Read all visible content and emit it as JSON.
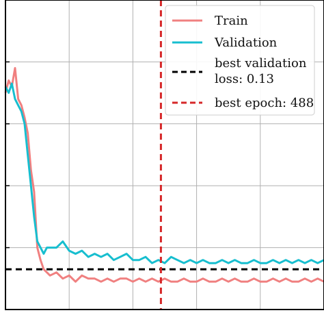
{
  "chart_data": {
    "type": "line",
    "title": "",
    "xlabel": "",
    "ylabel": "",
    "grid": true,
    "legend": {
      "placement": "top-right"
    },
    "xlim": [
      0,
      1000
    ],
    "ylim": [
      0,
      1.0
    ],
    "series": [
      {
        "name": "Train",
        "color": "#f08080",
        "x": [
          0,
          10,
          20,
          30,
          40,
          50,
          60,
          70,
          80,
          90,
          100,
          110,
          120,
          130,
          140,
          160,
          180,
          200,
          220,
          240,
          260,
          280,
          300,
          320,
          340,
          360,
          380,
          400,
          420,
          440,
          460,
          480,
          500,
          520,
          540,
          560,
          580,
          600,
          620,
          640,
          660,
          680,
          700,
          720,
          740,
          760,
          780,
          800,
          820,
          840,
          860,
          880,
          900,
          920,
          940,
          960,
          980,
          1000
        ],
        "y": [
          0.7,
          0.74,
          0.72,
          0.78,
          0.68,
          0.66,
          0.62,
          0.57,
          0.45,
          0.38,
          0.2,
          0.16,
          0.13,
          0.12,
          0.11,
          0.12,
          0.1,
          0.11,
          0.09,
          0.11,
          0.1,
          0.1,
          0.09,
          0.1,
          0.09,
          0.1,
          0.1,
          0.09,
          0.1,
          0.09,
          0.1,
          0.09,
          0.1,
          0.09,
          0.09,
          0.1,
          0.09,
          0.09,
          0.1,
          0.09,
          0.09,
          0.1,
          0.09,
          0.1,
          0.09,
          0.09,
          0.1,
          0.09,
          0.09,
          0.1,
          0.09,
          0.1,
          0.09,
          0.09,
          0.1,
          0.09,
          0.1,
          0.09
        ]
      },
      {
        "name": "Validation",
        "color": "#17becf",
        "x": [
          0,
          10,
          20,
          30,
          40,
          50,
          60,
          70,
          80,
          90,
          100,
          110,
          120,
          130,
          140,
          160,
          180,
          200,
          220,
          240,
          260,
          280,
          300,
          320,
          340,
          360,
          380,
          400,
          420,
          440,
          460,
          480,
          500,
          520,
          540,
          560,
          580,
          600,
          620,
          640,
          660,
          680,
          700,
          720,
          740,
          760,
          780,
          800,
          820,
          840,
          860,
          880,
          900,
          920,
          940,
          960,
          980,
          1000
        ],
        "y": [
          0.72,
          0.7,
          0.73,
          0.68,
          0.66,
          0.64,
          0.6,
          0.5,
          0.4,
          0.3,
          0.22,
          0.2,
          0.18,
          0.2,
          0.2,
          0.2,
          0.22,
          0.19,
          0.18,
          0.19,
          0.17,
          0.18,
          0.17,
          0.18,
          0.16,
          0.17,
          0.18,
          0.16,
          0.16,
          0.17,
          0.15,
          0.16,
          0.15,
          0.17,
          0.16,
          0.15,
          0.16,
          0.15,
          0.16,
          0.15,
          0.15,
          0.16,
          0.15,
          0.16,
          0.15,
          0.15,
          0.16,
          0.15,
          0.15,
          0.16,
          0.15,
          0.16,
          0.15,
          0.16,
          0.15,
          0.16,
          0.15,
          0.16
        ]
      }
    ],
    "reference_lines": [
      {
        "kind": "horizontal",
        "value": 0.13,
        "color": "#000000",
        "label": "best validation loss: 0.13"
      },
      {
        "kind": "vertical",
        "value": 488,
        "color": "#d62728",
        "label": "best epoch: 488"
      }
    ],
    "legend_entries": [
      {
        "label": "Train",
        "color": "#f08080",
        "style": "solid"
      },
      {
        "label": "Validation",
        "color": "#17becf",
        "style": "solid"
      },
      {
        "label_line1": "best validation",
        "label_line2": "loss: 0.13",
        "color": "#000000",
        "style": "dashed"
      },
      {
        "label": "best epoch: 488",
        "color": "#d62728",
        "style": "dashed"
      }
    ]
  }
}
